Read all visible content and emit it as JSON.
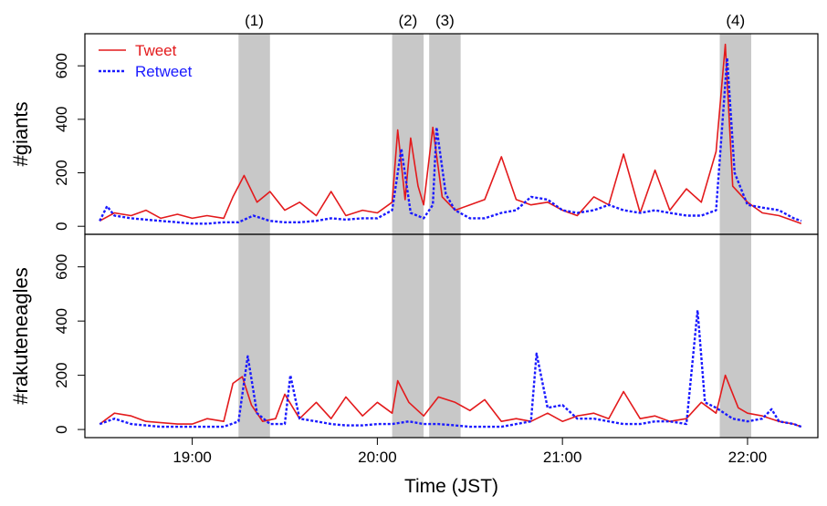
{
  "colors": {
    "tweet": "#e31a1c",
    "retweet": "#1a1aff",
    "shade": "#c8c8c8"
  },
  "chart_data": [
    {
      "type": "line",
      "ylabel": "#giants",
      "ylim": [
        -30,
        720
      ],
      "yticks": [
        0,
        200,
        400,
        600
      ],
      "xlim": [
        18.42,
        22.38
      ],
      "xticks": [
        19,
        20,
        21,
        22
      ],
      "xticklabels": [
        "19:00",
        "20:00",
        "21:00",
        "22:00"
      ],
      "xlabel": "",
      "legend": {
        "position": "top-left",
        "entries": [
          "Tweet",
          "Retweet"
        ]
      },
      "shaded_regions": [
        {
          "label": "(1)",
          "start": 19.25,
          "end": 19.42
        },
        {
          "label": "(2)",
          "start": 20.08,
          "end": 20.25
        },
        {
          "label": "(3)",
          "start": 20.28,
          "end": 20.45
        },
        {
          "label": "(4)",
          "start": 21.85,
          "end": 22.02
        }
      ],
      "series": [
        {
          "name": "Tweet",
          "style": "solid",
          "points": [
            [
              18.5,
              20
            ],
            [
              18.58,
              50
            ],
            [
              18.67,
              40
            ],
            [
              18.75,
              60
            ],
            [
              18.83,
              30
            ],
            [
              18.92,
              45
            ],
            [
              19.0,
              30
            ],
            [
              19.08,
              40
            ],
            [
              19.17,
              30
            ],
            [
              19.22,
              110
            ],
            [
              19.28,
              190
            ],
            [
              19.35,
              90
            ],
            [
              19.42,
              130
            ],
            [
              19.5,
              60
            ],
            [
              19.58,
              90
            ],
            [
              19.67,
              40
            ],
            [
              19.75,
              130
            ],
            [
              19.83,
              40
            ],
            [
              19.92,
              60
            ],
            [
              20.0,
              50
            ],
            [
              20.08,
              90
            ],
            [
              20.11,
              360
            ],
            [
              20.15,
              100
            ],
            [
              20.18,
              330
            ],
            [
              20.22,
              150
            ],
            [
              20.25,
              80
            ],
            [
              20.3,
              370
            ],
            [
              20.35,
              110
            ],
            [
              20.42,
              60
            ],
            [
              20.5,
              80
            ],
            [
              20.58,
              100
            ],
            [
              20.67,
              260
            ],
            [
              20.75,
              100
            ],
            [
              20.83,
              80
            ],
            [
              20.92,
              90
            ],
            [
              21.0,
              60
            ],
            [
              21.08,
              40
            ],
            [
              21.17,
              110
            ],
            [
              21.25,
              80
            ],
            [
              21.33,
              270
            ],
            [
              21.42,
              50
            ],
            [
              21.5,
              210
            ],
            [
              21.58,
              60
            ],
            [
              21.67,
              140
            ],
            [
              21.75,
              90
            ],
            [
              21.83,
              280
            ],
            [
              21.88,
              680
            ],
            [
              21.92,
              150
            ],
            [
              22.0,
              90
            ],
            [
              22.08,
              50
            ],
            [
              22.17,
              40
            ],
            [
              22.25,
              20
            ],
            [
              22.29,
              10
            ]
          ]
        },
        {
          "name": "Retweet",
          "style": "dotted",
          "points": [
            [
              18.5,
              20
            ],
            [
              18.54,
              75
            ],
            [
              18.58,
              40
            ],
            [
              18.67,
              30
            ],
            [
              18.75,
              25
            ],
            [
              18.83,
              20
            ],
            [
              18.92,
              15
            ],
            [
              19.0,
              10
            ],
            [
              19.08,
              10
            ],
            [
              19.17,
              15
            ],
            [
              19.25,
              15
            ],
            [
              19.33,
              40
            ],
            [
              19.42,
              20
            ],
            [
              19.5,
              15
            ],
            [
              19.58,
              15
            ],
            [
              19.67,
              20
            ],
            [
              19.75,
              30
            ],
            [
              19.83,
              25
            ],
            [
              19.92,
              30
            ],
            [
              20.0,
              30
            ],
            [
              20.08,
              60
            ],
            [
              20.13,
              290
            ],
            [
              20.18,
              50
            ],
            [
              20.25,
              30
            ],
            [
              20.3,
              80
            ],
            [
              20.32,
              370
            ],
            [
              20.37,
              120
            ],
            [
              20.42,
              60
            ],
            [
              20.5,
              30
            ],
            [
              20.58,
              30
            ],
            [
              20.67,
              50
            ],
            [
              20.75,
              60
            ],
            [
              20.83,
              110
            ],
            [
              20.92,
              100
            ],
            [
              21.0,
              60
            ],
            [
              21.08,
              50
            ],
            [
              21.17,
              60
            ],
            [
              21.25,
              80
            ],
            [
              21.33,
              60
            ],
            [
              21.42,
              50
            ],
            [
              21.5,
              60
            ],
            [
              21.58,
              50
            ],
            [
              21.67,
              40
            ],
            [
              21.75,
              40
            ],
            [
              21.83,
              60
            ],
            [
              21.89,
              630
            ],
            [
              21.93,
              200
            ],
            [
              22.0,
              80
            ],
            [
              22.08,
              70
            ],
            [
              22.17,
              60
            ],
            [
              22.25,
              30
            ],
            [
              22.29,
              20
            ]
          ]
        }
      ]
    },
    {
      "type": "line",
      "ylabel": "#rakuteneagles",
      "ylim": [
        -30,
        720
      ],
      "yticks": [
        0,
        200,
        400,
        600
      ],
      "xlim": [
        18.42,
        22.38
      ],
      "xticks": [
        19,
        20,
        21,
        22
      ],
      "xticklabels": [
        "19:00",
        "20:00",
        "21:00",
        "22:00"
      ],
      "xlabel": "Time (JST)",
      "shaded_regions": [
        {
          "label": "(1)",
          "start": 19.25,
          "end": 19.42
        },
        {
          "label": "(2)",
          "start": 20.08,
          "end": 20.25
        },
        {
          "label": "(3)",
          "start": 20.28,
          "end": 20.45
        },
        {
          "label": "(4)",
          "start": 21.85,
          "end": 22.02
        }
      ],
      "series": [
        {
          "name": "Tweet",
          "style": "solid",
          "points": [
            [
              18.5,
              20
            ],
            [
              18.58,
              60
            ],
            [
              18.67,
              50
            ],
            [
              18.75,
              30
            ],
            [
              18.83,
              25
            ],
            [
              18.92,
              20
            ],
            [
              19.0,
              20
            ],
            [
              19.08,
              40
            ],
            [
              19.17,
              30
            ],
            [
              19.22,
              170
            ],
            [
              19.27,
              195
            ],
            [
              19.32,
              90
            ],
            [
              19.38,
              30
            ],
            [
              19.45,
              40
            ],
            [
              19.5,
              130
            ],
            [
              19.58,
              40
            ],
            [
              19.67,
              100
            ],
            [
              19.75,
              40
            ],
            [
              19.83,
              120
            ],
            [
              19.92,
              50
            ],
            [
              20.0,
              100
            ],
            [
              20.08,
              60
            ],
            [
              20.11,
              180
            ],
            [
              20.17,
              100
            ],
            [
              20.25,
              50
            ],
            [
              20.33,
              120
            ],
            [
              20.42,
              100
            ],
            [
              20.5,
              70
            ],
            [
              20.58,
              110
            ],
            [
              20.67,
              30
            ],
            [
              20.75,
              40
            ],
            [
              20.83,
              30
            ],
            [
              20.92,
              60
            ],
            [
              21.0,
              30
            ],
            [
              21.08,
              50
            ],
            [
              21.17,
              60
            ],
            [
              21.25,
              40
            ],
            [
              21.33,
              140
            ],
            [
              21.42,
              40
            ],
            [
              21.5,
              50
            ],
            [
              21.58,
              30
            ],
            [
              21.67,
              40
            ],
            [
              21.75,
              100
            ],
            [
              21.83,
              60
            ],
            [
              21.88,
              200
            ],
            [
              21.95,
              80
            ],
            [
              22.0,
              60
            ],
            [
              22.08,
              50
            ],
            [
              22.17,
              30
            ],
            [
              22.25,
              20
            ],
            [
              22.29,
              10
            ]
          ]
        },
        {
          "name": "Retweet",
          "style": "dotted",
          "points": [
            [
              18.5,
              20
            ],
            [
              18.58,
              40
            ],
            [
              18.67,
              20
            ],
            [
              18.75,
              15
            ],
            [
              18.83,
              10
            ],
            [
              18.92,
              10
            ],
            [
              19.0,
              10
            ],
            [
              19.08,
              10
            ],
            [
              19.17,
              10
            ],
            [
              19.25,
              30
            ],
            [
              19.3,
              270
            ],
            [
              19.35,
              60
            ],
            [
              19.42,
              20
            ],
            [
              19.5,
              20
            ],
            [
              19.53,
              200
            ],
            [
              19.58,
              40
            ],
            [
              19.67,
              30
            ],
            [
              19.75,
              20
            ],
            [
              19.83,
              15
            ],
            [
              19.92,
              15
            ],
            [
              20.0,
              20
            ],
            [
              20.08,
              20
            ],
            [
              20.17,
              30
            ],
            [
              20.25,
              20
            ],
            [
              20.33,
              20
            ],
            [
              20.42,
              15
            ],
            [
              20.5,
              10
            ],
            [
              20.58,
              10
            ],
            [
              20.67,
              10
            ],
            [
              20.75,
              20
            ],
            [
              20.83,
              30
            ],
            [
              20.86,
              280
            ],
            [
              20.92,
              80
            ],
            [
              21.0,
              90
            ],
            [
              21.08,
              40
            ],
            [
              21.17,
              40
            ],
            [
              21.25,
              30
            ],
            [
              21.33,
              20
            ],
            [
              21.42,
              20
            ],
            [
              21.5,
              30
            ],
            [
              21.58,
              30
            ],
            [
              21.67,
              20
            ],
            [
              21.73,
              440
            ],
            [
              21.77,
              100
            ],
            [
              21.83,
              80
            ],
            [
              21.92,
              40
            ],
            [
              22.0,
              30
            ],
            [
              22.08,
              40
            ],
            [
              22.13,
              75
            ],
            [
              22.17,
              30
            ],
            [
              22.25,
              20
            ],
            [
              22.29,
              10
            ]
          ]
        }
      ]
    }
  ]
}
